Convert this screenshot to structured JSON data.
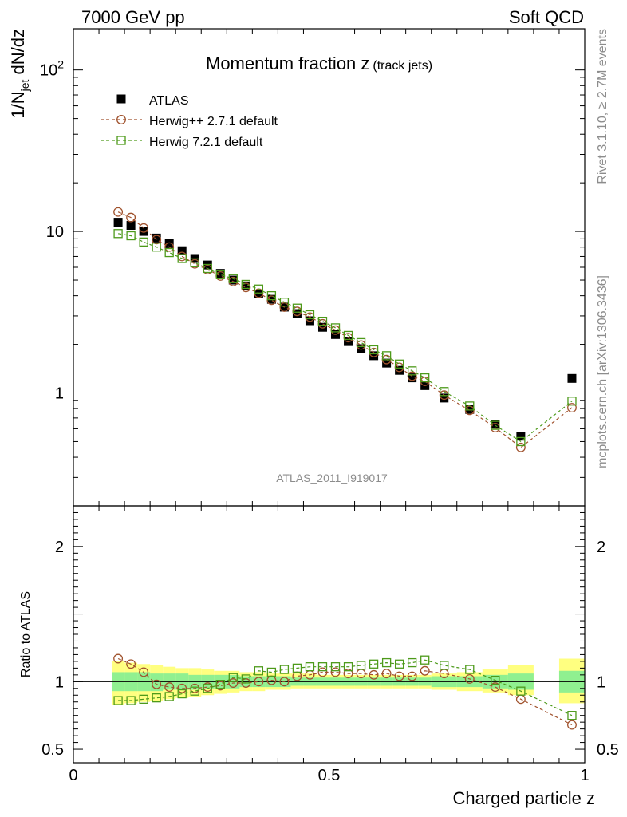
{
  "header": {
    "left": "7000 GeV pp",
    "right": "Soft QCD"
  },
  "side": {
    "rivet": "Rivet 3.1.10, ≥ 2.7M events",
    "mcplots": "mcplots.cern.ch [arXiv:1306.3436]"
  },
  "colors": {
    "data": "#000000",
    "herwigpp": "#a0522d",
    "herwig7": "#4d9a1a",
    "band_inner": "#90f090",
    "band_outer": "#ffff80"
  },
  "chart_data": [
    {
      "type": "scatter",
      "title": "Momentum fraction z",
      "title_suffix": "(track jets)",
      "ylabel_main": "1/N",
      "ylabel_sub": "jet",
      "ylabel_tail": " dN/dz",
      "yscale": "log",
      "ylim": [
        0.2,
        180
      ],
      "xlim": [
        0,
        1
      ],
      "yticks": [
        {
          "value": 1,
          "label": "1"
        },
        {
          "value": 10,
          "label": "10"
        },
        {
          "value": 100,
          "label": "10",
          "sup": "2"
        }
      ],
      "watermark": "ATLAS_2011_I919017",
      "legend_position": "top-left",
      "x": [
        0.0875,
        0.1125,
        0.1375,
        0.1625,
        0.1875,
        0.2125,
        0.2375,
        0.2625,
        0.2875,
        0.3125,
        0.3375,
        0.3625,
        0.3875,
        0.4125,
        0.4375,
        0.4625,
        0.4875,
        0.5125,
        0.5375,
        0.5625,
        0.5875,
        0.6125,
        0.6375,
        0.6625,
        0.6875,
        0.725,
        0.775,
        0.825,
        0.875,
        0.975
      ],
      "series": [
        {
          "name": "ATLAS",
          "marker": "square-filled",
          "color": "#000000",
          "values": [
            11.4,
            10.9,
            10.0,
            9.1,
            8.4,
            7.6,
            6.8,
            6.2,
            5.5,
            5.0,
            4.6,
            4.1,
            3.8,
            3.4,
            3.1,
            2.8,
            2.55,
            2.3,
            2.08,
            1.88,
            1.7,
            1.53,
            1.38,
            1.24,
            1.11,
            0.93,
            0.79,
            0.64,
            0.54,
            1.23
          ]
        },
        {
          "name": "Herwig++ 2.7.1 default",
          "marker": "circle-open",
          "color": "#a0522d",
          "values": [
            13.2,
            12.2,
            10.5,
            8.9,
            8.0,
            7.0,
            6.3,
            5.8,
            5.3,
            4.9,
            4.5,
            4.15,
            3.75,
            3.4,
            3.2,
            2.95,
            2.68,
            2.45,
            2.2,
            1.98,
            1.78,
            1.61,
            1.44,
            1.27,
            1.18,
            0.97,
            0.78,
            0.61,
            0.46,
            0.81
          ]
        },
        {
          "name": "Herwig 7.2.1 default",
          "marker": "square-open",
          "color": "#4d9a1a",
          "values": [
            9.7,
            9.4,
            8.6,
            8.0,
            7.4,
            6.8,
            6.4,
            5.9,
            5.4,
            5.1,
            4.7,
            4.4,
            4.0,
            3.65,
            3.35,
            3.05,
            2.78,
            2.53,
            2.27,
            2.05,
            1.85,
            1.7,
            1.51,
            1.37,
            1.24,
            1.02,
            0.83,
            0.63,
            0.5,
            0.89
          ]
        }
      ],
      "legend": [
        {
          "label": "ATLAS"
        },
        {
          "label": "Herwig++ 2.7.1 default"
        },
        {
          "label": "Herwig 7.2.1 default"
        }
      ]
    },
    {
      "type": "scatter",
      "ylabel": "Ratio to ATLAS",
      "xlabel": "Charged particle z",
      "ylim": [
        0.4,
        2.3
      ],
      "xlim": [
        0,
        1
      ],
      "yticks": [
        {
          "value": 0.5,
          "label": "0.5"
        },
        {
          "value": 1,
          "label": "1"
        },
        {
          "value": 2,
          "label": "2"
        }
      ],
      "xticks": [
        {
          "value": 0,
          "label": "0"
        },
        {
          "value": 0.5,
          "label": "0.5"
        },
        {
          "value": 1,
          "label": "1"
        }
      ],
      "reference_line": 1,
      "band_edges": [
        0.075,
        0.1,
        0.125,
        0.15,
        0.175,
        0.2,
        0.225,
        0.25,
        0.275,
        0.3,
        0.325,
        0.35,
        0.375,
        0.4,
        0.425,
        0.45,
        0.475,
        0.5,
        0.525,
        0.55,
        0.575,
        0.6,
        0.625,
        0.65,
        0.675,
        0.7,
        0.75,
        0.8,
        0.85,
        0.9,
        0.95,
        1.0
      ],
      "band_outer": [
        [
          0.83,
          1.15
        ],
        [
          0.84,
          1.14
        ],
        [
          0.85,
          1.13
        ],
        [
          0.86,
          1.12
        ],
        [
          0.87,
          1.11
        ],
        [
          0.88,
          1.1
        ],
        [
          0.89,
          1.1
        ],
        [
          0.9,
          1.09
        ],
        [
          0.91,
          1.08
        ],
        [
          0.92,
          1.08
        ],
        [
          0.93,
          1.07
        ],
        [
          0.93,
          1.07
        ],
        [
          0.94,
          1.06
        ],
        [
          0.94,
          1.06
        ],
        [
          0.95,
          1.06
        ],
        [
          0.95,
          1.06
        ],
        [
          0.95,
          1.05
        ],
        [
          0.95,
          1.05
        ],
        [
          0.95,
          1.05
        ],
        [
          0.95,
          1.05
        ],
        [
          0.95,
          1.05
        ],
        [
          0.95,
          1.05
        ],
        [
          0.95,
          1.05
        ],
        [
          0.95,
          1.05
        ],
        [
          0.95,
          1.05
        ],
        [
          0.94,
          1.06
        ],
        [
          0.93,
          1.07
        ],
        [
          0.92,
          1.09
        ],
        [
          0.9,
          1.12
        ],
        null,
        [
          0.84,
          1.17
        ]
      ],
      "band_inner": [
        [
          0.93,
          1.07
        ],
        [
          0.93,
          1.07
        ],
        [
          0.93,
          1.07
        ],
        [
          0.93,
          1.06
        ],
        [
          0.94,
          1.06
        ],
        [
          0.94,
          1.06
        ],
        [
          0.94,
          1.05
        ],
        [
          0.95,
          1.05
        ],
        [
          0.95,
          1.05
        ],
        [
          0.95,
          1.05
        ],
        [
          0.96,
          1.04
        ],
        [
          0.96,
          1.04
        ],
        [
          0.96,
          1.04
        ],
        [
          0.96,
          1.04
        ],
        [
          0.97,
          1.03
        ],
        [
          0.97,
          1.03
        ],
        [
          0.97,
          1.03
        ],
        [
          0.97,
          1.03
        ],
        [
          0.97,
          1.03
        ],
        [
          0.97,
          1.03
        ],
        [
          0.97,
          1.03
        ],
        [
          0.97,
          1.03
        ],
        [
          0.97,
          1.03
        ],
        [
          0.97,
          1.03
        ],
        [
          0.97,
          1.03
        ],
        [
          0.96,
          1.04
        ],
        [
          0.96,
          1.04
        ],
        [
          0.95,
          1.05
        ],
        [
          0.94,
          1.06
        ],
        null,
        [
          0.92,
          1.08
        ]
      ],
      "x": [
        0.0875,
        0.1125,
        0.1375,
        0.1625,
        0.1875,
        0.2125,
        0.2375,
        0.2625,
        0.2875,
        0.3125,
        0.3375,
        0.3625,
        0.3875,
        0.4125,
        0.4375,
        0.4625,
        0.4875,
        0.5125,
        0.5375,
        0.5625,
        0.5875,
        0.6125,
        0.6375,
        0.6625,
        0.6875,
        0.725,
        0.775,
        0.825,
        0.875,
        0.975
      ],
      "series": [
        {
          "name": "Herwig++ 2.7.1 default",
          "marker": "circle-open",
          "color": "#a0522d",
          "values": [
            1.17,
            1.13,
            1.07,
            0.98,
            0.96,
            0.95,
            0.95,
            0.96,
            0.97,
            0.99,
            0.99,
            1.0,
            1.01,
            1.0,
            1.04,
            1.05,
            1.07,
            1.07,
            1.06,
            1.06,
            1.05,
            1.06,
            1.04,
            1.04,
            1.08,
            1.06,
            1.02,
            0.96,
            0.87,
            0.68
          ]
        },
        {
          "name": "Herwig 7.2.1 default",
          "marker": "square-open",
          "color": "#4d9a1a",
          "values": [
            0.86,
            0.86,
            0.87,
            0.88,
            0.89,
            0.91,
            0.93,
            0.95,
            0.98,
            1.03,
            1.02,
            1.08,
            1.07,
            1.09,
            1.1,
            1.11,
            1.11,
            1.11,
            1.11,
            1.12,
            1.13,
            1.14,
            1.13,
            1.14,
            1.16,
            1.12,
            1.09,
            1.01,
            0.93,
            0.75
          ]
        }
      ]
    }
  ]
}
